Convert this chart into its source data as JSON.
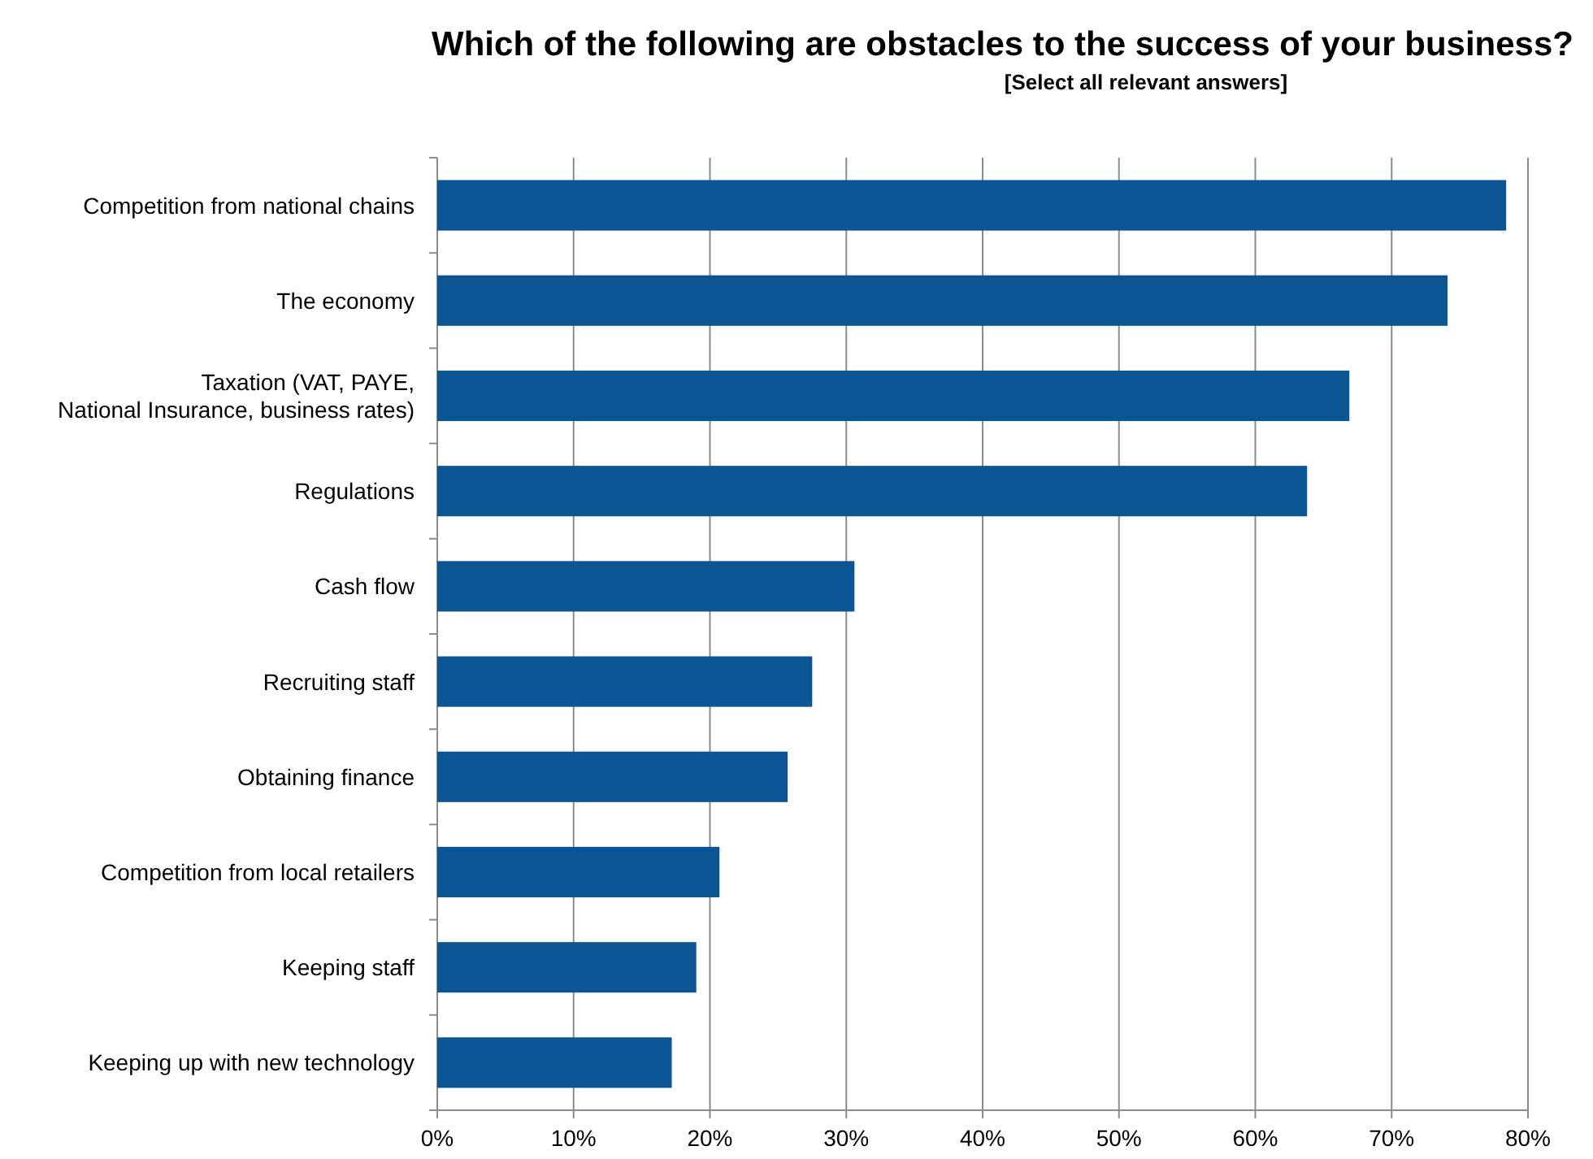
{
  "chart_data": {
    "type": "bar",
    "orientation": "horizontal",
    "title": "Which of the following are obstacles to the success of your business?",
    "subtitle": "[Select all relevant answers]",
    "categories": [
      "Competition from national chains",
      "The economy",
      "Taxation (VAT, PAYE, National Insurance, business rates)",
      "Regulations",
      "Cash flow",
      "Recruiting staff",
      "Obtaining finance",
      "Competition from local retailers",
      "Keeping staff",
      "Keeping up with new technology"
    ],
    "values": [
      78.4,
      74.1,
      66.9,
      63.8,
      30.6,
      27.5,
      25.7,
      20.7,
      19.0,
      17.2
    ],
    "color": "#0b5594",
    "xlim": [
      0,
      80
    ],
    "xticks": [
      {
        "value": 0,
        "label": "0%"
      },
      {
        "value": 10,
        "label": "10%"
      },
      {
        "value": 20,
        "label": "20%"
      },
      {
        "value": 30,
        "label": "30%"
      },
      {
        "value": 40,
        "label": "40%"
      },
      {
        "value": 50,
        "label": "50%"
      },
      {
        "value": 60,
        "label": "60%"
      },
      {
        "value": 70,
        "label": "70%"
      },
      {
        "value": 80,
        "label": "80%"
      }
    ],
    "grid": "x"
  }
}
